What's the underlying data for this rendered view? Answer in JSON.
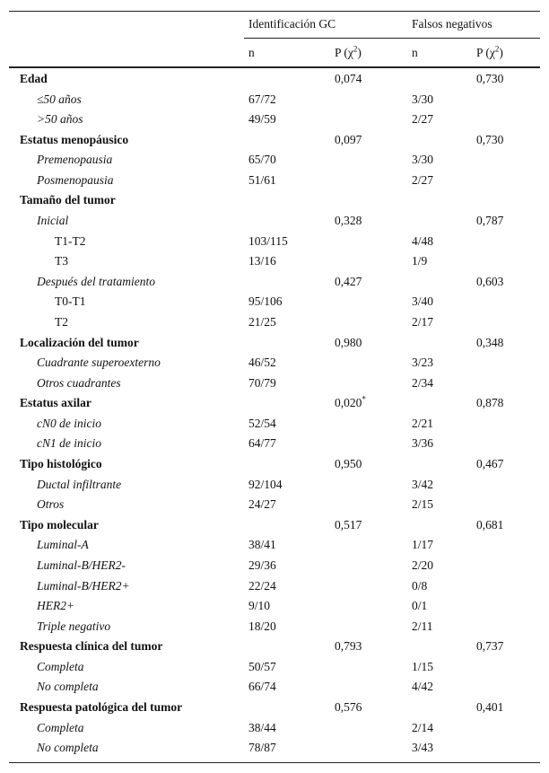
{
  "table": {
    "header": {
      "groups": [
        "Identificación GC",
        "Falsos negativos"
      ],
      "columns": [
        {
          "text": "n"
        },
        {
          "text": "P (χ",
          "sup": "2",
          "end": ")"
        },
        {
          "text": "n"
        },
        {
          "text": "P (χ",
          "sup": "2",
          "end": ")"
        }
      ]
    },
    "rows": [
      {
        "label": "Edad",
        "level": 0,
        "cells": [
          null,
          "0,074",
          null,
          "0,730"
        ]
      },
      {
        "label": "≤50 años",
        "level": 1,
        "cells": [
          "67/72",
          null,
          "3/30",
          null
        ]
      },
      {
        "label": ">50 años",
        "level": 1,
        "cells": [
          "49/59",
          null,
          "2/27",
          null
        ]
      },
      {
        "label": "Estatus menopáusico",
        "level": 0,
        "cells": [
          null,
          "0,097",
          null,
          "0,730"
        ]
      },
      {
        "label": "Premenopausia",
        "level": 1,
        "cells": [
          "65/70",
          null,
          "3/30",
          null
        ]
      },
      {
        "label": "Posmenopausia",
        "level": 1,
        "cells": [
          "51/61",
          null,
          "2/27",
          null
        ]
      },
      {
        "label": "Tamaño del tumor",
        "level": 0,
        "cells": [
          null,
          null,
          null,
          null
        ]
      },
      {
        "label": "Inicial",
        "level": 1,
        "cells": [
          null,
          "0,328",
          null,
          "0,787"
        ]
      },
      {
        "label": "T1-T2",
        "level": 2,
        "cells": [
          "103/115",
          null,
          "4/48",
          null
        ]
      },
      {
        "label": "T3",
        "level": 2,
        "cells": [
          "13/16",
          null,
          "1/9",
          null
        ]
      },
      {
        "label": "Después del tratamiento",
        "level": 1,
        "cells": [
          null,
          "0,427",
          null,
          "0,603"
        ]
      },
      {
        "label": "T0-T1",
        "level": 2,
        "cells": [
          "95/106",
          null,
          "3/40",
          null
        ]
      },
      {
        "label": "T2",
        "level": 2,
        "cells": [
          "21/25",
          null,
          "2/17",
          null
        ]
      },
      {
        "label": "Localización del tumor",
        "level": 0,
        "cells": [
          null,
          "0,980",
          null,
          "0,348"
        ]
      },
      {
        "label": "Cuadrante superoexterno",
        "level": 1,
        "cells": [
          "46/52",
          null,
          "3/23",
          null
        ]
      },
      {
        "label": "Otros cuadrantes",
        "level": 1,
        "cells": [
          "70/79",
          null,
          "2/34",
          null
        ]
      },
      {
        "label": "Estatus axilar",
        "level": 0,
        "cells": [
          null,
          {
            "text": "0,020",
            "note": "*"
          },
          null,
          "0,878"
        ]
      },
      {
        "label": "cN0 de inicio",
        "level": 1,
        "cells": [
          "52/54",
          null,
          "2/21",
          null
        ]
      },
      {
        "label": "cN1 de inicio",
        "level": 1,
        "cells": [
          "64/77",
          null,
          "3/36",
          null
        ]
      },
      {
        "label": "Tipo histológico",
        "level": 0,
        "cells": [
          null,
          "0,950",
          null,
          "0,467"
        ]
      },
      {
        "label": "Ductal infiltrante",
        "level": 1,
        "cells": [
          "92/104",
          null,
          "3/42",
          null
        ]
      },
      {
        "label": "Otros",
        "level": 1,
        "cells": [
          "24/27",
          null,
          "2/15",
          null
        ]
      },
      {
        "label": "Tipo molecular",
        "level": 0,
        "cells": [
          null,
          "0,517",
          null,
          "0,681"
        ]
      },
      {
        "label": "Luminal-A",
        "level": 1,
        "cells": [
          "38/41",
          null,
          "1/17",
          null
        ]
      },
      {
        "label": "Luminal-B/HER2-",
        "level": 1,
        "cells": [
          "29/36",
          null,
          "2/20",
          null
        ]
      },
      {
        "label": "Luminal-B/HER2+",
        "level": 1,
        "cells": [
          "22/24",
          null,
          "0/8",
          null
        ]
      },
      {
        "label": "HER2+",
        "level": 1,
        "cells": [
          "9/10",
          null,
          "0/1",
          null
        ]
      },
      {
        "label": "Triple negativo",
        "level": 1,
        "cells": [
          "18/20",
          null,
          "2/11",
          null
        ]
      },
      {
        "label": "Respuesta clínica del tumor",
        "level": 0,
        "cells": [
          null,
          "0,793",
          null,
          "0,737"
        ]
      },
      {
        "label": "Completa",
        "level": 1,
        "cells": [
          "50/57",
          null,
          "1/15",
          null
        ]
      },
      {
        "label": "No completa",
        "level": 1,
        "cells": [
          "66/74",
          null,
          "4/42",
          null
        ]
      },
      {
        "label": "Respuesta patológica del tumor",
        "level": 0,
        "cells": [
          null,
          "0,576",
          null,
          "0,401"
        ]
      },
      {
        "label": "Completa",
        "level": 1,
        "cells": [
          "38/44",
          null,
          "2/14",
          null
        ]
      },
      {
        "label": "No completa",
        "level": 1,
        "cells": [
          "78/87",
          null,
          "3/43",
          null
        ]
      }
    ]
  }
}
